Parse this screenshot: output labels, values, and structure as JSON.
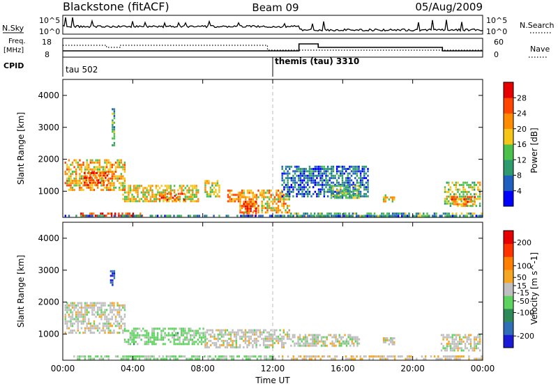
{
  "header": {
    "radar": "Blackstone (fitACF)",
    "beam": "Beam 09",
    "date": "05/Aug/2009"
  },
  "strips": {
    "nsky_label": "N.Sky",
    "nsearch_label": "N.Search",
    "freq_label": "Freq.",
    "freq_unit": "[MHz]",
    "nave_label": "Nave",
    "cpid_label": "CPID",
    "log_ticks": [
      "10^5",
      "10^0"
    ],
    "freq_ticks": [
      "18",
      "8"
    ],
    "nave_ticks": [
      "60",
      "0"
    ]
  },
  "cpid": {
    "segments": [
      {
        "start_hour": 0,
        "name": "tau 502"
      },
      {
        "start_hour": 12,
        "name": "themis (tau) 3310"
      }
    ]
  },
  "time_axis": {
    "label": "Time UT",
    "ticks": [
      "00:00",
      "04:00",
      "08:00",
      "12:00",
      "16:00",
      "20:00",
      "00:00"
    ],
    "tick_hours": [
      0,
      4,
      8,
      12,
      16,
      20,
      24
    ]
  },
  "chart_data": [
    {
      "type": "heatmap",
      "panel": "power",
      "ylabel": "Slant Range [km]",
      "ylim": [
        180,
        4500
      ],
      "y_ticks": [
        1000,
        2000,
        3000,
        4000
      ],
      "xlim_hours": [
        0,
        24
      ],
      "colorbar": {
        "label": "Power [dB]",
        "tick_labels": [
          "4",
          "8",
          "12",
          "16",
          "20",
          "24",
          "28"
        ],
        "tick_values": [
          4,
          8,
          12,
          16,
          20,
          24,
          28
        ],
        "range": [
          0,
          32
        ],
        "colors": [
          "#0000ff",
          "#1f5fbf",
          "#2e9a6e",
          "#4cc24c",
          "#f5c518",
          "#ff8c00",
          "#ff4500",
          "#e60000"
        ]
      },
      "scatter_regions": [
        {
          "hours": [
            0.1,
            3.6
          ],
          "range_km": [
            1000,
            2000
          ],
          "power_db": 20
        },
        {
          "hours": [
            1.2,
            2.6
          ],
          "range_km": [
            1150,
            1600
          ],
          "power_db": 26
        },
        {
          "hours": [
            2.8,
            3.0
          ],
          "range_km": [
            2400,
            3600
          ],
          "power_db": 12
        },
        {
          "hours": [
            3.4,
            7.8
          ],
          "range_km": [
            650,
            1200
          ],
          "power_db": 18
        },
        {
          "hours": [
            5.5,
            7.0
          ],
          "range_km": [
            700,
            950
          ],
          "power_db": 24
        },
        {
          "hours": [
            8.1,
            9.0
          ],
          "range_km": [
            800,
            1350
          ],
          "power_db": 17
        },
        {
          "hours": [
            9.4,
            10.2
          ],
          "range_km": [
            650,
            1050
          ],
          "power_db": 22
        },
        {
          "hours": [
            10.1,
            13.0
          ],
          "range_km": [
            300,
            1050
          ],
          "power_db": 20
        },
        {
          "hours": [
            10.3,
            11.1
          ],
          "range_km": [
            200,
            700
          ],
          "power_db": 27
        },
        {
          "hours": [
            1.0,
            4.8
          ],
          "range_km": [
            200,
            330
          ],
          "power_db": 27
        },
        {
          "hours": [
            12.5,
            17.5
          ],
          "range_km": [
            800,
            1800
          ],
          "power_db": 7
        },
        {
          "hours": [
            15.3,
            17.0
          ],
          "range_km": [
            750,
            1200
          ],
          "power_db": 13
        },
        {
          "hours": [
            18.3,
            19.0
          ],
          "range_km": [
            650,
            900
          ],
          "power_db": 18
        },
        {
          "hours": [
            21.8,
            23.9
          ],
          "range_km": [
            500,
            1300
          ],
          "power_db": 16
        },
        {
          "hours": [
            22.2,
            23.6
          ],
          "range_km": [
            550,
            850
          ],
          "power_db": 24
        },
        {
          "hours": [
            13.0,
            24.0
          ],
          "range_km": [
            180,
            330
          ],
          "power_db": 12
        },
        {
          "hours": [
            0.0,
            24.0
          ],
          "range_km": [
            180,
            260
          ],
          "power_db": 8
        }
      ]
    },
    {
      "type": "heatmap",
      "panel": "velocity",
      "ylabel": "Slant Range [km]",
      "ylim": [
        180,
        4500
      ],
      "y_ticks": [
        1000,
        2000,
        3000,
        4000
      ],
      "xlim_hours": [
        0,
        24
      ],
      "colorbar": {
        "label": "Velocity [m s^-1]",
        "tick_labels": [
          "200",
          "100",
          "50",
          "15",
          "-15",
          "-50",
          "-100",
          "-200"
        ],
        "tick_values": [
          200,
          100,
          50,
          15,
          -15,
          -50,
          -100,
          -200
        ],
        "range": [
          -250,
          250
        ],
        "colors": [
          "#1a1ad6",
          "#2f6fb5",
          "#2e8b57",
          "#5fd35f",
          "#bfbfbf",
          "#f5a623",
          "#ff7f00",
          "#ff3300",
          "#e60000"
        ]
      },
      "scatter_regions": [
        {
          "hours": [
            0.1,
            3.6
          ],
          "range_km": [
            1000,
            2000
          ],
          "velocity": 0
        },
        {
          "hours": [
            2.7,
            3.0
          ],
          "range_km": [
            2500,
            3000
          ],
          "velocity": -200
        },
        {
          "hours": [
            3.5,
            8.2
          ],
          "range_km": [
            650,
            1200
          ],
          "velocity": -45
        },
        {
          "hours": [
            8.1,
            13.0
          ],
          "range_km": [
            550,
            1150
          ],
          "velocity": 0
        },
        {
          "hours": [
            13.0,
            17.0
          ],
          "range_km": [
            600,
            1000
          ],
          "velocity": 0
        },
        {
          "hours": [
            18.3,
            19.0
          ],
          "range_km": [
            650,
            900
          ],
          "velocity": 0
        },
        {
          "hours": [
            21.6,
            23.9
          ],
          "range_km": [
            450,
            1000
          ],
          "velocity": 0
        },
        {
          "hours": [
            0.5,
            12.0
          ],
          "range_km": [
            180,
            330
          ],
          "velocity": -40
        },
        {
          "hours": [
            12.0,
            24.0
          ],
          "range_km": [
            180,
            330
          ],
          "velocity": 20
        }
      ]
    }
  ]
}
